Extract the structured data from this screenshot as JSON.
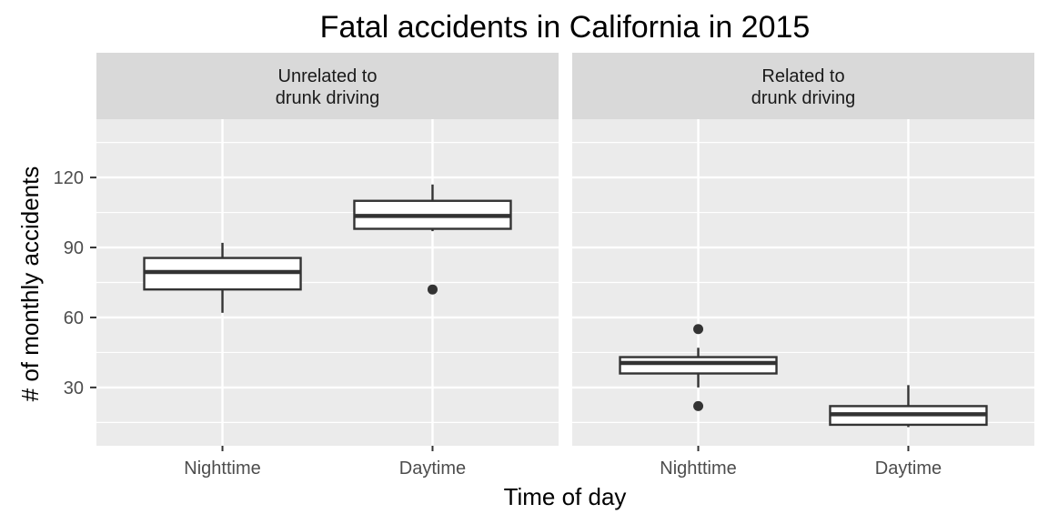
{
  "chart_data": {
    "type": "box",
    "title": "Fatal accidents in California in 2015",
    "xlabel": "Time of day",
    "ylabel": "# of monthly accidents",
    "ylim": [
      5,
      145
    ],
    "yticks": [
      30,
      60,
      90,
      120
    ],
    "yminor": [
      15,
      45,
      75,
      105,
      135
    ],
    "categories": [
      "Nighttime",
      "Daytime"
    ],
    "grid": true,
    "colors": {
      "panel_bg": "#ebebeb",
      "strip_bg": "#d9d9d9",
      "grid": "#ffffff",
      "box_fill": "#ffffff",
      "box_line": "#333333"
    },
    "panels": [
      {
        "strip_lines": [
          "Unrelated to",
          "drunk driving"
        ],
        "boxes": [
          {
            "category": "Nighttime",
            "whisker_low": 62,
            "q1": 72,
            "median": 79.5,
            "q3": 85.5,
            "whisker_high": 92,
            "outliers": []
          },
          {
            "category": "Daytime",
            "whisker_low": 97,
            "q1": 98,
            "median": 103.5,
            "q3": 110,
            "whisker_high": 117,
            "outliers": [
              72
            ]
          }
        ]
      },
      {
        "strip_lines": [
          "Related to",
          "drunk driving"
        ],
        "boxes": [
          {
            "category": "Nighttime",
            "whisker_low": 30,
            "q1": 36,
            "median": 40.5,
            "q3": 43,
            "whisker_high": 47,
            "outliers": [
              55,
              22
            ]
          },
          {
            "category": "Daytime",
            "whisker_low": 13,
            "q1": 14,
            "median": 18.5,
            "q3": 22,
            "whisker_high": 31,
            "outliers": []
          }
        ]
      }
    ]
  }
}
